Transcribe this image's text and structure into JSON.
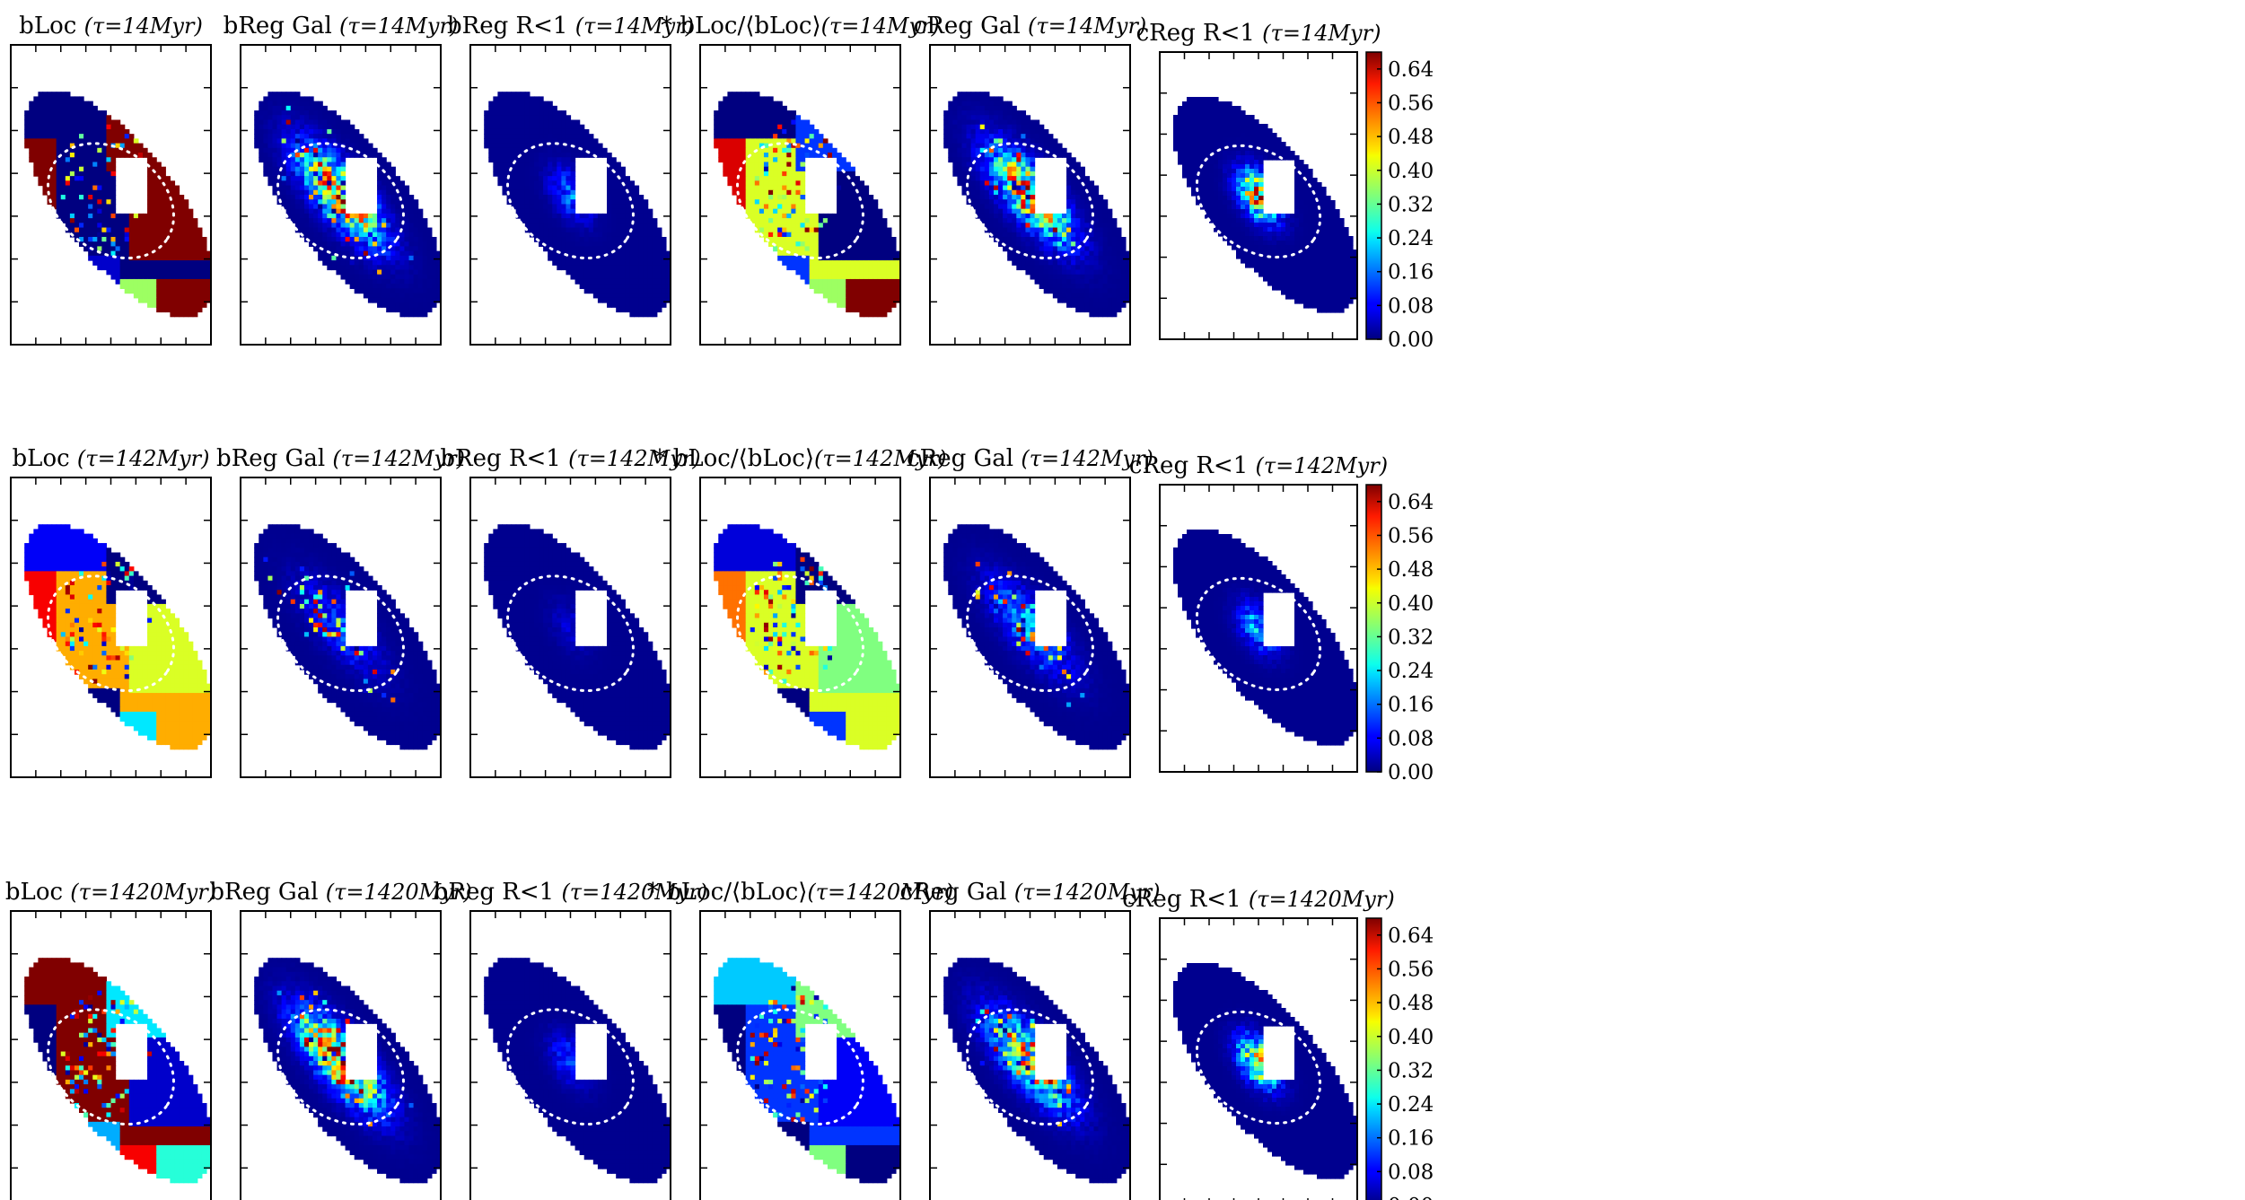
{
  "chart_data": {
    "type": "heatmap",
    "colorscale": "jet",
    "colorbar": {
      "range": [
        0.0,
        0.68
      ],
      "ticks": [
        "0.00",
        "0.08",
        "0.16",
        "0.24",
        "0.32",
        "0.40",
        "0.48",
        "0.56",
        "0.64"
      ]
    },
    "rows": [
      {
        "tau": "14",
        "titles": [
          {
            "label": "bLoc ",
            "tau": "(τ=14Myr)"
          },
          {
            "label": "bReg Gal ",
            "tau": "(τ=14Myr)"
          },
          {
            "label": "bReg R<1 ",
            "tau": "(τ=14Myr)"
          },
          {
            "label": "* bLoc/⟨bLoc⟩",
            "tau": "(τ=14Myr)"
          },
          {
            "label": "cReg Gal ",
            "tau": "(τ=14Myr)"
          },
          {
            "label": "cReg R<1 ",
            "tau": "(τ=14Myr)"
          }
        ]
      },
      {
        "tau": "142",
        "titles": [
          {
            "label": "bLoc ",
            "tau": "(τ=142Myr)"
          },
          {
            "label": "bReg Gal ",
            "tau": "(τ=142Myr)"
          },
          {
            "label": "bReg R<1 ",
            "tau": "(τ=142Myr)"
          },
          {
            "label": "* bLoc/⟨bLoc⟩",
            "tau": "(τ=142Myr)"
          },
          {
            "label": "cReg Gal ",
            "tau": "(τ=142Myr)"
          },
          {
            "label": "cReg R<1 ",
            "tau": "(τ=142Myr)"
          }
        ]
      },
      {
        "tau": "1420",
        "titles": [
          {
            "label": "bLoc ",
            "tau": "(τ=1420Myr)"
          },
          {
            "label": "bReg Gal ",
            "tau": "(τ=1420Myr)"
          },
          {
            "label": "bReg R<1 ",
            "tau": "(τ=1420Myr)"
          },
          {
            "label": "* bLoc/⟨bLoc⟩",
            "tau": "(τ=1420Myr)"
          },
          {
            "label": "cReg Gal ",
            "tau": "(τ=1420Myr)"
          },
          {
            "label": "cReg R<1 ",
            "tau": "(τ=1420Myr)"
          }
        ]
      }
    ],
    "panel_types": [
      "region-map",
      "pixel-map",
      "pixel-map-inner",
      "region-map",
      "pixel-map",
      "pixel-map-inner"
    ],
    "region_values": [
      [
        0.0,
        0.68,
        0.68,
        0.68,
        0.05,
        0.36,
        0.68,
        0.0
      ],
      [
        0.08,
        0.0,
        0.6,
        0.4,
        0.0,
        0.24,
        0.48,
        0.48
      ],
      [
        0.68,
        0.24,
        0.0,
        0.05,
        0.2,
        0.6,
        0.28,
        0.68
      ]
    ],
    "region_values_normalized": [
      [
        0.0,
        0.12,
        0.62,
        0.0,
        0.12,
        0.36,
        0.68,
        0.4
      ],
      [
        0.06,
        0.0,
        0.52,
        0.34,
        0.0,
        0.12,
        0.4,
        0.4
      ],
      [
        0.22,
        0.34,
        0.0,
        0.08,
        0.0,
        0.34,
        0.0,
        0.12
      ]
    ],
    "pixel_intensity": [
      [
        0.55,
        0.15,
        0.5
      ],
      [
        0.12,
        0.05,
        0.2
      ],
      [
        0.6,
        0.12,
        0.45
      ]
    ]
  }
}
